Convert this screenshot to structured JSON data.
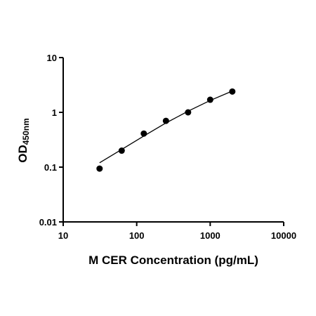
{
  "chart_data": {
    "type": "scatter",
    "xlabel": "M CER Concentration (pg/mL)",
    "ylabel": "OD",
    "ylabel_sub": "450nm",
    "x": [
      31.25,
      62.5,
      125,
      250,
      500,
      1000,
      2000
    ],
    "series": [
      {
        "mode": "markers",
        "color": "#000000",
        "values": [
          0.094,
          0.2,
          0.41,
          0.7,
          1.0,
          1.7,
          2.4
        ]
      },
      {
        "mode": "line",
        "color": "#000000",
        "values": [
          0.12,
          0.21,
          0.37,
          0.64,
          1.05,
          1.65,
          2.45
        ]
      }
    ],
    "xscale": "log",
    "yscale": "log",
    "xlim": [
      10,
      10000
    ],
    "ylim": [
      0.01,
      10
    ],
    "xticks": [
      10,
      100,
      1000,
      10000
    ],
    "yticks": [
      0.01,
      0.1,
      1,
      10
    ]
  }
}
